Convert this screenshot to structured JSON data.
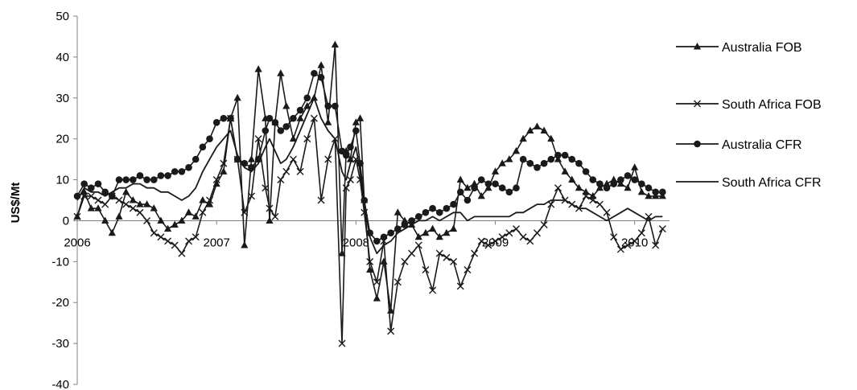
{
  "chart_data": {
    "type": "line",
    "title": "",
    "xlabel": "",
    "ylabel": "US$/Mt",
    "ylim": [
      -40,
      50
    ],
    "yticks": [
      50,
      40,
      30,
      20,
      10,
      0,
      -10,
      -20,
      -30,
      -40
    ],
    "xlim": [
      2006,
      2010.25
    ],
    "xticks": [
      "2006",
      "2007",
      "2008",
      "2009",
      "2010"
    ],
    "grid": false,
    "legend": "right",
    "series": [
      {
        "name": "Australia FOB",
        "marker": "triangle",
        "x": [
          2006.0,
          2006.05,
          2006.1,
          2006.15,
          2006.2,
          2006.25,
          2006.3,
          2006.35,
          2006.4,
          2006.45,
          2006.5,
          2006.55,
          2006.6,
          2006.65,
          2006.7,
          2006.75,
          2006.8,
          2006.85,
          2006.9,
          2006.95,
          2007.0,
          2007.05,
          2007.1,
          2007.15,
          2007.2,
          2007.25,
          2007.3,
          2007.35,
          2007.38,
          2007.42,
          2007.46,
          2007.5,
          2007.55,
          2007.6,
          2007.65,
          2007.7,
          2007.75,
          2007.8,
          2007.85,
          2007.9,
          2007.93,
          2007.96,
          2008.0,
          2008.03,
          2008.06,
          2008.1,
          2008.15,
          2008.2,
          2008.25,
          2008.3,
          2008.35,
          2008.4,
          2008.45,
          2008.5,
          2008.55,
          2008.6,
          2008.65,
          2008.7,
          2008.75,
          2008.8,
          2008.85,
          2008.9,
          2008.95,
          2009.0,
          2009.05,
          2009.1,
          2009.15,
          2009.2,
          2009.25,
          2009.3,
          2009.35,
          2009.4,
          2009.45,
          2009.5,
          2009.55,
          2009.6,
          2009.65,
          2009.7,
          2009.75,
          2009.8,
          2009.85,
          2009.9,
          2009.95,
          2010.0,
          2010.05,
          2010.1,
          2010.15,
          2010.2
        ],
        "values": [
          1,
          7,
          3,
          3,
          0,
          -3,
          1,
          7,
          5,
          4,
          4,
          3,
          0,
          -2,
          -1,
          0,
          2,
          1,
          5,
          4,
          9,
          12,
          25,
          30,
          -6,
          15,
          37,
          25,
          0,
          24,
          36,
          28,
          20,
          25,
          28,
          30,
          38,
          24,
          43,
          -8,
          17,
          15,
          24,
          25,
          5,
          -12,
          -19,
          -10,
          -22,
          2,
          0,
          -1,
          -4,
          -3,
          -2,
          -4,
          -3,
          -2,
          10,
          8,
          9,
          6,
          8,
          12,
          14,
          15,
          17,
          20,
          22,
          23,
          22,
          20,
          15,
          12,
          10,
          8,
          7,
          6,
          8,
          9,
          10,
          9,
          8,
          13,
          7,
          6,
          6,
          6
        ]
      },
      {
        "name": "South Africa FOB",
        "marker": "x",
        "x": [
          2006.0,
          2006.05,
          2006.1,
          2006.15,
          2006.2,
          2006.25,
          2006.3,
          2006.35,
          2006.4,
          2006.45,
          2006.5,
          2006.55,
          2006.6,
          2006.65,
          2006.7,
          2006.75,
          2006.8,
          2006.85,
          2006.9,
          2006.95,
          2007.0,
          2007.05,
          2007.1,
          2007.15,
          2007.2,
          2007.25,
          2007.3,
          2007.35,
          2007.38,
          2007.42,
          2007.46,
          2007.5,
          2007.55,
          2007.6,
          2007.65,
          2007.7,
          2007.75,
          2007.8,
          2007.85,
          2007.9,
          2007.93,
          2007.96,
          2008.0,
          2008.03,
          2008.06,
          2008.1,
          2008.15,
          2008.2,
          2008.25,
          2008.3,
          2008.35,
          2008.4,
          2008.45,
          2008.5,
          2008.55,
          2008.6,
          2008.65,
          2008.7,
          2008.75,
          2008.8,
          2008.85,
          2008.9,
          2008.95,
          2009.0,
          2009.05,
          2009.1,
          2009.15,
          2009.2,
          2009.25,
          2009.3,
          2009.35,
          2009.4,
          2009.45,
          2009.5,
          2009.55,
          2009.6,
          2009.65,
          2009.7,
          2009.75,
          2009.8,
          2009.85,
          2009.9,
          2009.95,
          2010.0,
          2010.05,
          2010.1,
          2010.15,
          2010.2
        ],
        "values": [
          1,
          6,
          6,
          5,
          4,
          6,
          5,
          4,
          3,
          2,
          0,
          -3,
          -4,
          -5,
          -6,
          -8,
          -5,
          -4,
          2,
          5,
          10,
          14,
          25,
          15,
          2,
          6,
          20,
          8,
          3,
          1,
          10,
          12,
          15,
          12,
          20,
          25,
          5,
          15,
          20,
          -30,
          8,
          10,
          15,
          10,
          2,
          -10,
          -15,
          -5,
          -27,
          -15,
          -10,
          -8,
          -6,
          -12,
          -17,
          -8,
          -9,
          -10,
          -16,
          -12,
          -8,
          -5,
          -6,
          -5,
          -4,
          -3,
          -2,
          -4,
          -5,
          -3,
          -1,
          4,
          8,
          5,
          4,
          3,
          6,
          5,
          4,
          2,
          -4,
          -7,
          -6,
          -5,
          -3,
          1,
          -6,
          -2
        ]
      },
      {
        "name": "Australia CFR",
        "marker": "circle",
        "x": [
          2006.0,
          2006.05,
          2006.1,
          2006.15,
          2006.2,
          2006.25,
          2006.3,
          2006.35,
          2006.4,
          2006.45,
          2006.5,
          2006.55,
          2006.6,
          2006.65,
          2006.7,
          2006.75,
          2006.8,
          2006.85,
          2006.9,
          2006.95,
          2007.0,
          2007.05,
          2007.1,
          2007.15,
          2007.2,
          2007.25,
          2007.3,
          2007.35,
          2007.38,
          2007.42,
          2007.46,
          2007.5,
          2007.55,
          2007.6,
          2007.65,
          2007.7,
          2007.75,
          2007.8,
          2007.85,
          2007.9,
          2007.93,
          2007.96,
          2008.0,
          2008.03,
          2008.06,
          2008.1,
          2008.15,
          2008.2,
          2008.25,
          2008.3,
          2008.35,
          2008.4,
          2008.45,
          2008.5,
          2008.55,
          2008.6,
          2008.65,
          2008.7,
          2008.75,
          2008.8,
          2008.85,
          2008.9,
          2008.95,
          2009.0,
          2009.05,
          2009.1,
          2009.15,
          2009.2,
          2009.25,
          2009.3,
          2009.35,
          2009.4,
          2009.45,
          2009.5,
          2009.55,
          2009.6,
          2009.65,
          2009.7,
          2009.75,
          2009.8,
          2009.85,
          2009.9,
          2009.95,
          2010.0,
          2010.05,
          2010.1,
          2010.15,
          2010.2
        ],
        "values": [
          6,
          9,
          8,
          9,
          7,
          6,
          10,
          10,
          10,
          11,
          10,
          10,
          11,
          11,
          12,
          12,
          13,
          15,
          18,
          20,
          24,
          25,
          25,
          15,
          14,
          13,
          15,
          22,
          25,
          24,
          22,
          23,
          25,
          27,
          30,
          36,
          35,
          28,
          28,
          17,
          16,
          18,
          22,
          14,
          5,
          -3,
          -5,
          -4,
          -3,
          -2,
          -1,
          0,
          1,
          2,
          3,
          2,
          3,
          4,
          7,
          5,
          8,
          10,
          9,
          9,
          8,
          7,
          8,
          15,
          14,
          13,
          14,
          15,
          16,
          16,
          15,
          14,
          12,
          10,
          9,
          8,
          9,
          10,
          11,
          10,
          9,
          8,
          7,
          7
        ]
      },
      {
        "name": "South Africa CFR",
        "marker": "none",
        "x": [
          2006.0,
          2006.05,
          2006.1,
          2006.15,
          2006.2,
          2006.25,
          2006.3,
          2006.35,
          2006.4,
          2006.45,
          2006.5,
          2006.55,
          2006.6,
          2006.65,
          2006.7,
          2006.75,
          2006.8,
          2006.85,
          2006.9,
          2006.95,
          2007.0,
          2007.05,
          2007.1,
          2007.15,
          2007.2,
          2007.25,
          2007.3,
          2007.35,
          2007.38,
          2007.42,
          2007.46,
          2007.5,
          2007.55,
          2007.6,
          2007.65,
          2007.7,
          2007.75,
          2007.8,
          2007.85,
          2007.9,
          2007.93,
          2007.96,
          2008.0,
          2008.03,
          2008.06,
          2008.1,
          2008.15,
          2008.2,
          2008.25,
          2008.3,
          2008.35,
          2008.4,
          2008.45,
          2008.5,
          2008.55,
          2008.6,
          2008.65,
          2008.7,
          2008.75,
          2008.8,
          2008.85,
          2008.9,
          2008.95,
          2009.0,
          2009.05,
          2009.1,
          2009.15,
          2009.2,
          2009.25,
          2009.3,
          2009.35,
          2009.4,
          2009.45,
          2009.5,
          2009.55,
          2009.6,
          2009.65,
          2009.7,
          2009.75,
          2009.8,
          2009.85,
          2009.9,
          2009.95,
          2010.0,
          2010.05,
          2010.1,
          2010.15,
          2010.2
        ],
        "values": [
          5,
          8,
          7,
          7,
          6,
          7,
          8,
          8,
          9,
          9,
          8,
          8,
          7,
          7,
          6,
          5,
          6,
          8,
          12,
          15,
          18,
          20,
          22,
          16,
          13,
          12,
          14,
          18,
          20,
          17,
          14,
          15,
          18,
          22,
          26,
          30,
          25,
          22,
          20,
          12,
          10,
          14,
          18,
          12,
          4,
          -4,
          -8,
          -6,
          -5,
          -3,
          -2,
          -1,
          0,
          0,
          1,
          0,
          1,
          2,
          2,
          0,
          1,
          1,
          1,
          1,
          1,
          1,
          2,
          2,
          3,
          4,
          4,
          5,
          5,
          5,
          4,
          3,
          3,
          2,
          1,
          0,
          1,
          2,
          3,
          2,
          1,
          0,
          1,
          1
        ]
      }
    ]
  }
}
